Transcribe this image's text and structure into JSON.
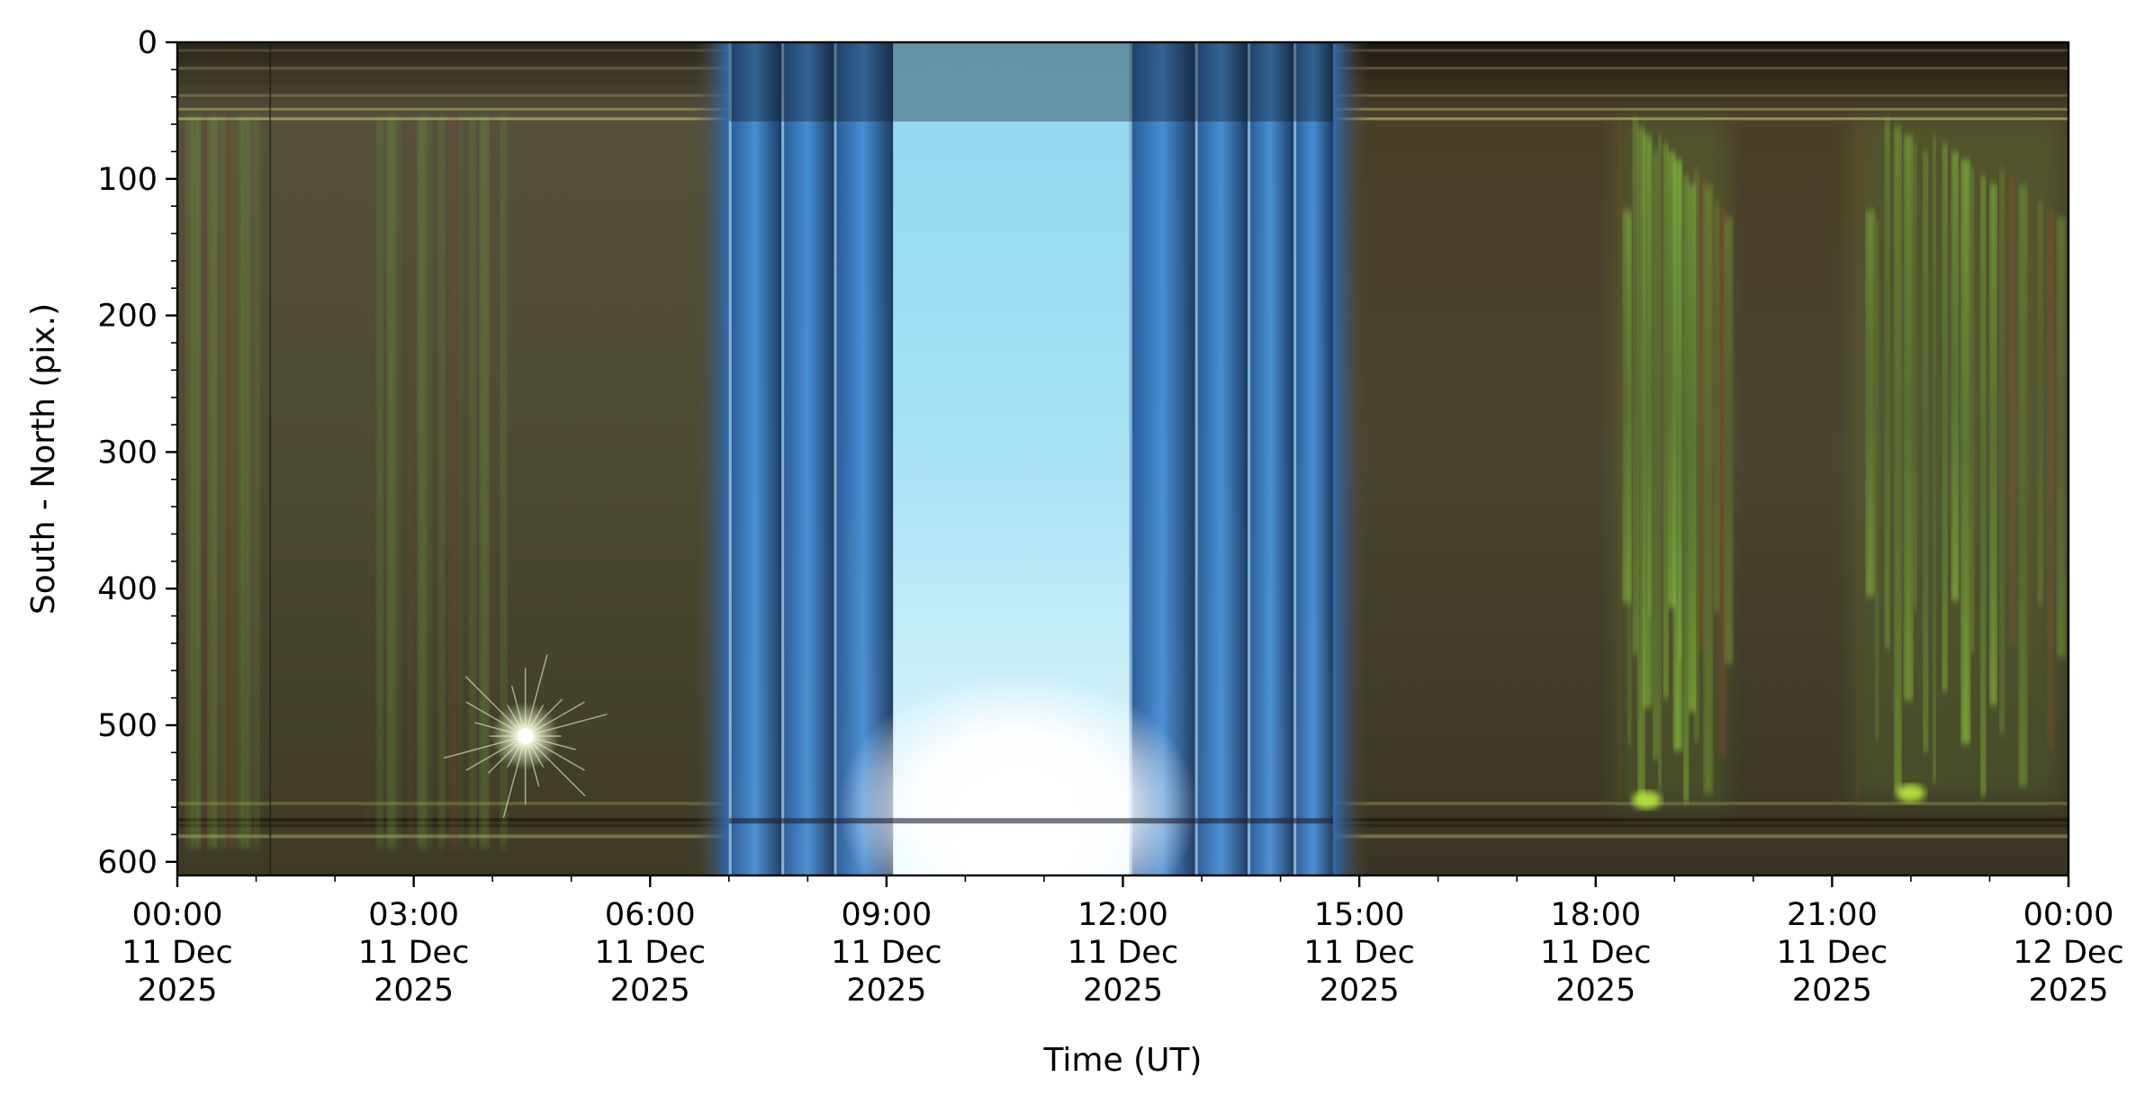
{
  "chart_data": {
    "type": "heatmap",
    "title": "",
    "xlabel": "Time (UT)",
    "ylabel": "South - North (pix.)",
    "x_range": [
      "2025-12-11T00:00",
      "2025-12-12T00:00"
    ],
    "ylim": [
      610,
      0
    ],
    "y_inverted": true,
    "grid": false,
    "legend": "none",
    "y_ticks": [
      {
        "value": 0,
        "label": "0"
      },
      {
        "value": 100,
        "label": "100"
      },
      {
        "value": 200,
        "label": "200"
      },
      {
        "value": 300,
        "label": "300"
      },
      {
        "value": 400,
        "label": "400"
      },
      {
        "value": 500,
        "label": "500"
      },
      {
        "value": 600,
        "label": "600"
      }
    ],
    "x_ticks": [
      {
        "value": "2025-12-11T00:00",
        "time": "00:00",
        "date": "11 Dec",
        "year": "2025"
      },
      {
        "value": "2025-12-11T03:00",
        "time": "03:00",
        "date": "11 Dec",
        "year": "2025"
      },
      {
        "value": "2025-12-11T06:00",
        "time": "06:00",
        "date": "11 Dec",
        "year": "2025"
      },
      {
        "value": "2025-12-11T09:00",
        "time": "09:00",
        "date": "11 Dec",
        "year": "2025"
      },
      {
        "value": "2025-12-11T12:00",
        "time": "12:00",
        "date": "11 Dec",
        "year": "2025"
      },
      {
        "value": "2025-12-11T15:00",
        "time": "15:00",
        "date": "11 Dec",
        "year": "2025"
      },
      {
        "value": "2025-12-11T18:00",
        "time": "18:00",
        "date": "11 Dec",
        "year": "2025"
      },
      {
        "value": "2025-12-11T21:00",
        "time": "21:00",
        "date": "11 Dec",
        "year": "2025"
      },
      {
        "value": "2025-12-12T00:00",
        "time": "00:00",
        "date": "12 Dec",
        "year": "2025"
      }
    ],
    "colors": {
      "night_background": "#4f4a30",
      "aurora_green": "#8fe040",
      "aurora_red": "#7a3a2a",
      "daylight_blue": "#3a7fc8",
      "daylight_core": "#bfeefa",
      "sun_glare": "#ffffff"
    },
    "features": [
      {
        "name": "daylight",
        "start": "2025-12-11T07:00",
        "end": "2025-12-11T14:40"
      },
      {
        "name": "sun-glare",
        "time": "2025-12-11T10:40",
        "y": 560
      },
      {
        "name": "bright-star",
        "time": "2025-12-11T04:25",
        "y": 508
      },
      {
        "name": "aurora-arc",
        "start": "2025-12-11T18:15",
        "end": "2025-12-11T19:40",
        "y_range": [
          55,
          560
        ]
      },
      {
        "name": "aurora-arc",
        "start": "2025-12-11T21:15",
        "end": "2025-12-11T23:55",
        "y_range": [
          55,
          555
        ]
      },
      {
        "name": "faint-aurora",
        "start": "2025-12-11T00:00",
        "end": "2025-12-11T01:00",
        "y_range": [
          55,
          590
        ]
      },
      {
        "name": "faint-aurora",
        "start": "2025-12-11T02:20",
        "end": "2025-12-11T04:10",
        "y_range": [
          55,
          590
        ]
      }
    ]
  }
}
